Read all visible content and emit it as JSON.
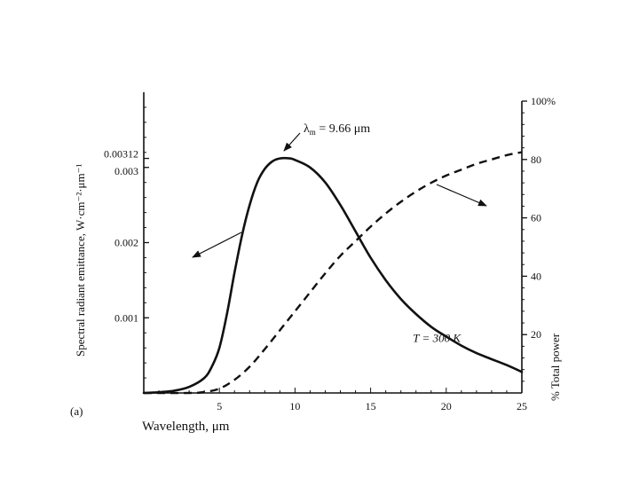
{
  "chart_data": {
    "type": "line",
    "panel_label": "(a)",
    "xlabel": "Wavelength, μm",
    "ylabel_left": "Spectral radiant emittance, W·cm⁻²·μm⁻¹",
    "ylabel_right": "% Total power",
    "xlim": [
      0,
      25
    ],
    "ylim_left": [
      0,
      0.004
    ],
    "ylim_right": [
      0,
      100
    ],
    "x_ticks": [
      5,
      10,
      15,
      20,
      25
    ],
    "x_tick_labels": [
      "5",
      "10",
      "15",
      "20",
      "25"
    ],
    "y_left_ticks": [
      0.001,
      0.002,
      0.003,
      0.00312
    ],
    "y_left_tick_labels": [
      "0.001",
      "0.002",
      "0.003",
      "0.00312"
    ],
    "y_right_ticks": [
      20,
      40,
      60,
      80,
      100
    ],
    "y_right_tick_labels": [
      "20",
      "40",
      "60",
      "80",
      "100%"
    ],
    "series": [
      {
        "name": "Spectral radiant emittance",
        "axis": "left",
        "style": "solid",
        "x": [
          0,
          1,
          2,
          3,
          4,
          4.5,
          5,
          5.5,
          6,
          6.5,
          7,
          7.5,
          8,
          8.5,
          9,
          9.66,
          10,
          11,
          12,
          13,
          14,
          15,
          16,
          17,
          18,
          19,
          20,
          21,
          22,
          23,
          24,
          25
        ],
        "values": [
          0,
          1e-05,
          3e-05,
          8e-05,
          0.0002,
          0.00035,
          0.0006,
          0.00105,
          0.0016,
          0.0021,
          0.0025,
          0.0028,
          0.00298,
          0.00308,
          0.00312,
          0.00312,
          0.0031,
          0.003,
          0.0028,
          0.0025,
          0.00215,
          0.0018,
          0.0015,
          0.00125,
          0.00105,
          0.00088,
          0.00075,
          0.00063,
          0.00053,
          0.00045,
          0.00037,
          0.00028
        ]
      },
      {
        "name": "% Total power",
        "axis": "right",
        "style": "dashed",
        "x": [
          0,
          3,
          4,
          5,
          6,
          7,
          8,
          9,
          10,
          11,
          12,
          13,
          14,
          15,
          16,
          17,
          18,
          19,
          20,
          21,
          22,
          23,
          24,
          25
        ],
        "values": [
          0,
          0,
          0.3,
          1.5,
          4.5,
          9,
          15,
          21.5,
          28,
          34.5,
          41,
          47,
          52,
          57,
          61.5,
          65.5,
          69,
          72,
          74.5,
          76.5,
          78.5,
          80,
          81.5,
          82.5
        ]
      }
    ],
    "annotations": {
      "peak_label_main": "λ",
      "peak_label_sub": "m",
      "peak_label_rest": " = 9.66 μm",
      "peak_x": 9.66,
      "peak_y": 0.00312,
      "temperature": "T = 300 K",
      "temperature_x": 17.8,
      "temperature_y_pct": 17.5
    }
  }
}
